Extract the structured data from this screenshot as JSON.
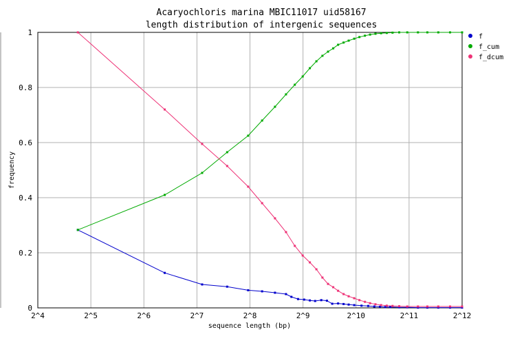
{
  "chart_data": {
    "type": "line",
    "title": "Acaryochloris marina MBIC11017 uid58167",
    "subtitle": "length distribution of intergenic sequences",
    "xlabel": "sequence length (bp)",
    "ylabel": "frequency",
    "x_scale": "log2",
    "xlim": [
      16,
      4096
    ],
    "ylim": [
      0,
      1
    ],
    "grid": true,
    "legend_position": "right",
    "x_tick_labels": [
      "2^4",
      "2^5",
      "2^6",
      "2^7",
      "2^8",
      "2^9",
      "2^10",
      "2^11",
      "2^12"
    ],
    "y_tick_labels": [
      "0",
      "0.2",
      "0.4",
      "0.6",
      "0.8",
      "1"
    ],
    "series": [
      {
        "name": "f",
        "color": "#0000cc",
        "points": [
          [
            27,
            0.283
          ],
          [
            84,
            0.127
          ],
          [
            137,
            0.085
          ],
          [
            190,
            0.077
          ],
          [
            250,
            0.064
          ],
          [
            300,
            0.06
          ],
          [
            355,
            0.055
          ],
          [
            410,
            0.05
          ],
          [
            440,
            0.04
          ],
          [
            480,
            0.032
          ],
          [
            520,
            0.03
          ],
          [
            560,
            0.027
          ],
          [
            600,
            0.025
          ],
          [
            650,
            0.028
          ],
          [
            700,
            0.026
          ],
          [
            750,
            0.015
          ],
          [
            810,
            0.016
          ],
          [
            870,
            0.014
          ],
          [
            930,
            0.012
          ],
          [
            1000,
            0.01
          ],
          [
            1100,
            0.008
          ],
          [
            1200,
            0.007
          ],
          [
            1300,
            0.005
          ],
          [
            1400,
            0.004
          ],
          [
            1500,
            0.003
          ],
          [
            1600,
            0.003
          ],
          [
            1800,
            0.002
          ],
          [
            2000,
            0.002
          ],
          [
            2300,
            0.001
          ],
          [
            2600,
            0.001
          ],
          [
            3000,
            0.001
          ],
          [
            3500,
            0.001
          ],
          [
            4096,
            0.001
          ]
        ]
      },
      {
        "name": "f_cum",
        "color": "#00aa00",
        "points": [
          [
            27,
            0.283
          ],
          [
            84,
            0.41
          ],
          [
            137,
            0.49
          ],
          [
            190,
            0.565
          ],
          [
            250,
            0.625
          ],
          [
            300,
            0.68
          ],
          [
            355,
            0.73
          ],
          [
            410,
            0.775
          ],
          [
            460,
            0.81
          ],
          [
            510,
            0.84
          ],
          [
            560,
            0.87
          ],
          [
            610,
            0.895
          ],
          [
            660,
            0.915
          ],
          [
            710,
            0.93
          ],
          [
            760,
            0.942
          ],
          [
            810,
            0.955
          ],
          [
            870,
            0.963
          ],
          [
            930,
            0.97
          ],
          [
            1000,
            0.977
          ],
          [
            1070,
            0.983
          ],
          [
            1150,
            0.988
          ],
          [
            1230,
            0.992
          ],
          [
            1320,
            0.995
          ],
          [
            1420,
            0.997
          ],
          [
            1530,
            0.998
          ],
          [
            1650,
            0.999
          ],
          [
            1800,
            1.0
          ],
          [
            2000,
            1.0
          ],
          [
            2300,
            1.0
          ],
          [
            2600,
            1.0
          ],
          [
            3000,
            1.0
          ],
          [
            3500,
            1.0
          ],
          [
            4096,
            1.0
          ]
        ]
      },
      {
        "name": "f_dcum",
        "color": "#ee3377",
        "points": [
          [
            27,
            1.0
          ],
          [
            84,
            0.72
          ],
          [
            137,
            0.595
          ],
          [
            190,
            0.515
          ],
          [
            250,
            0.44
          ],
          [
            300,
            0.38
          ],
          [
            355,
            0.325
          ],
          [
            410,
            0.275
          ],
          [
            460,
            0.225
          ],
          [
            510,
            0.19
          ],
          [
            560,
            0.165
          ],
          [
            610,
            0.14
          ],
          [
            660,
            0.11
          ],
          [
            710,
            0.087
          ],
          [
            760,
            0.075
          ],
          [
            810,
            0.062
          ],
          [
            870,
            0.05
          ],
          [
            930,
            0.042
          ],
          [
            1000,
            0.035
          ],
          [
            1070,
            0.028
          ],
          [
            1150,
            0.022
          ],
          [
            1230,
            0.017
          ],
          [
            1320,
            0.013
          ],
          [
            1420,
            0.01
          ],
          [
            1530,
            0.008
          ],
          [
            1650,
            0.007
          ],
          [
            1800,
            0.006
          ],
          [
            2000,
            0.005
          ],
          [
            2300,
            0.005
          ],
          [
            2600,
            0.005
          ],
          [
            3000,
            0.005
          ],
          [
            3500,
            0.005
          ],
          [
            4096,
            0.005
          ]
        ]
      }
    ]
  }
}
